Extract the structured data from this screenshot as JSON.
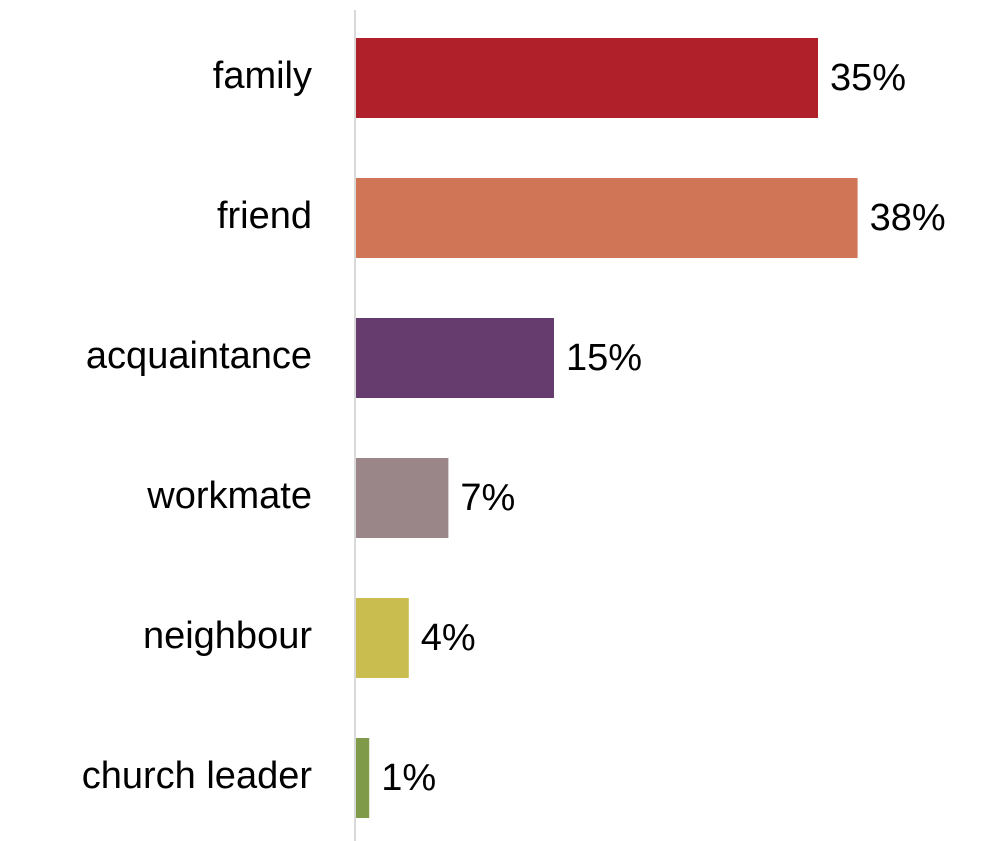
{
  "chart_data": {
    "type": "bar",
    "orientation": "horizontal",
    "categories": [
      "family",
      "friend",
      "acquaintance",
      "workmate",
      "neighbour",
      "church leader"
    ],
    "values": [
      35,
      38,
      15,
      7,
      4,
      1
    ],
    "value_labels": [
      "35%",
      "38%",
      "15%",
      "7%",
      "4%",
      "1%"
    ],
    "colors": [
      "#b0202b",
      "#d07556",
      "#653c6d",
      "#9a8589",
      "#c9bd50",
      "#7f9a48"
    ]
  }
}
